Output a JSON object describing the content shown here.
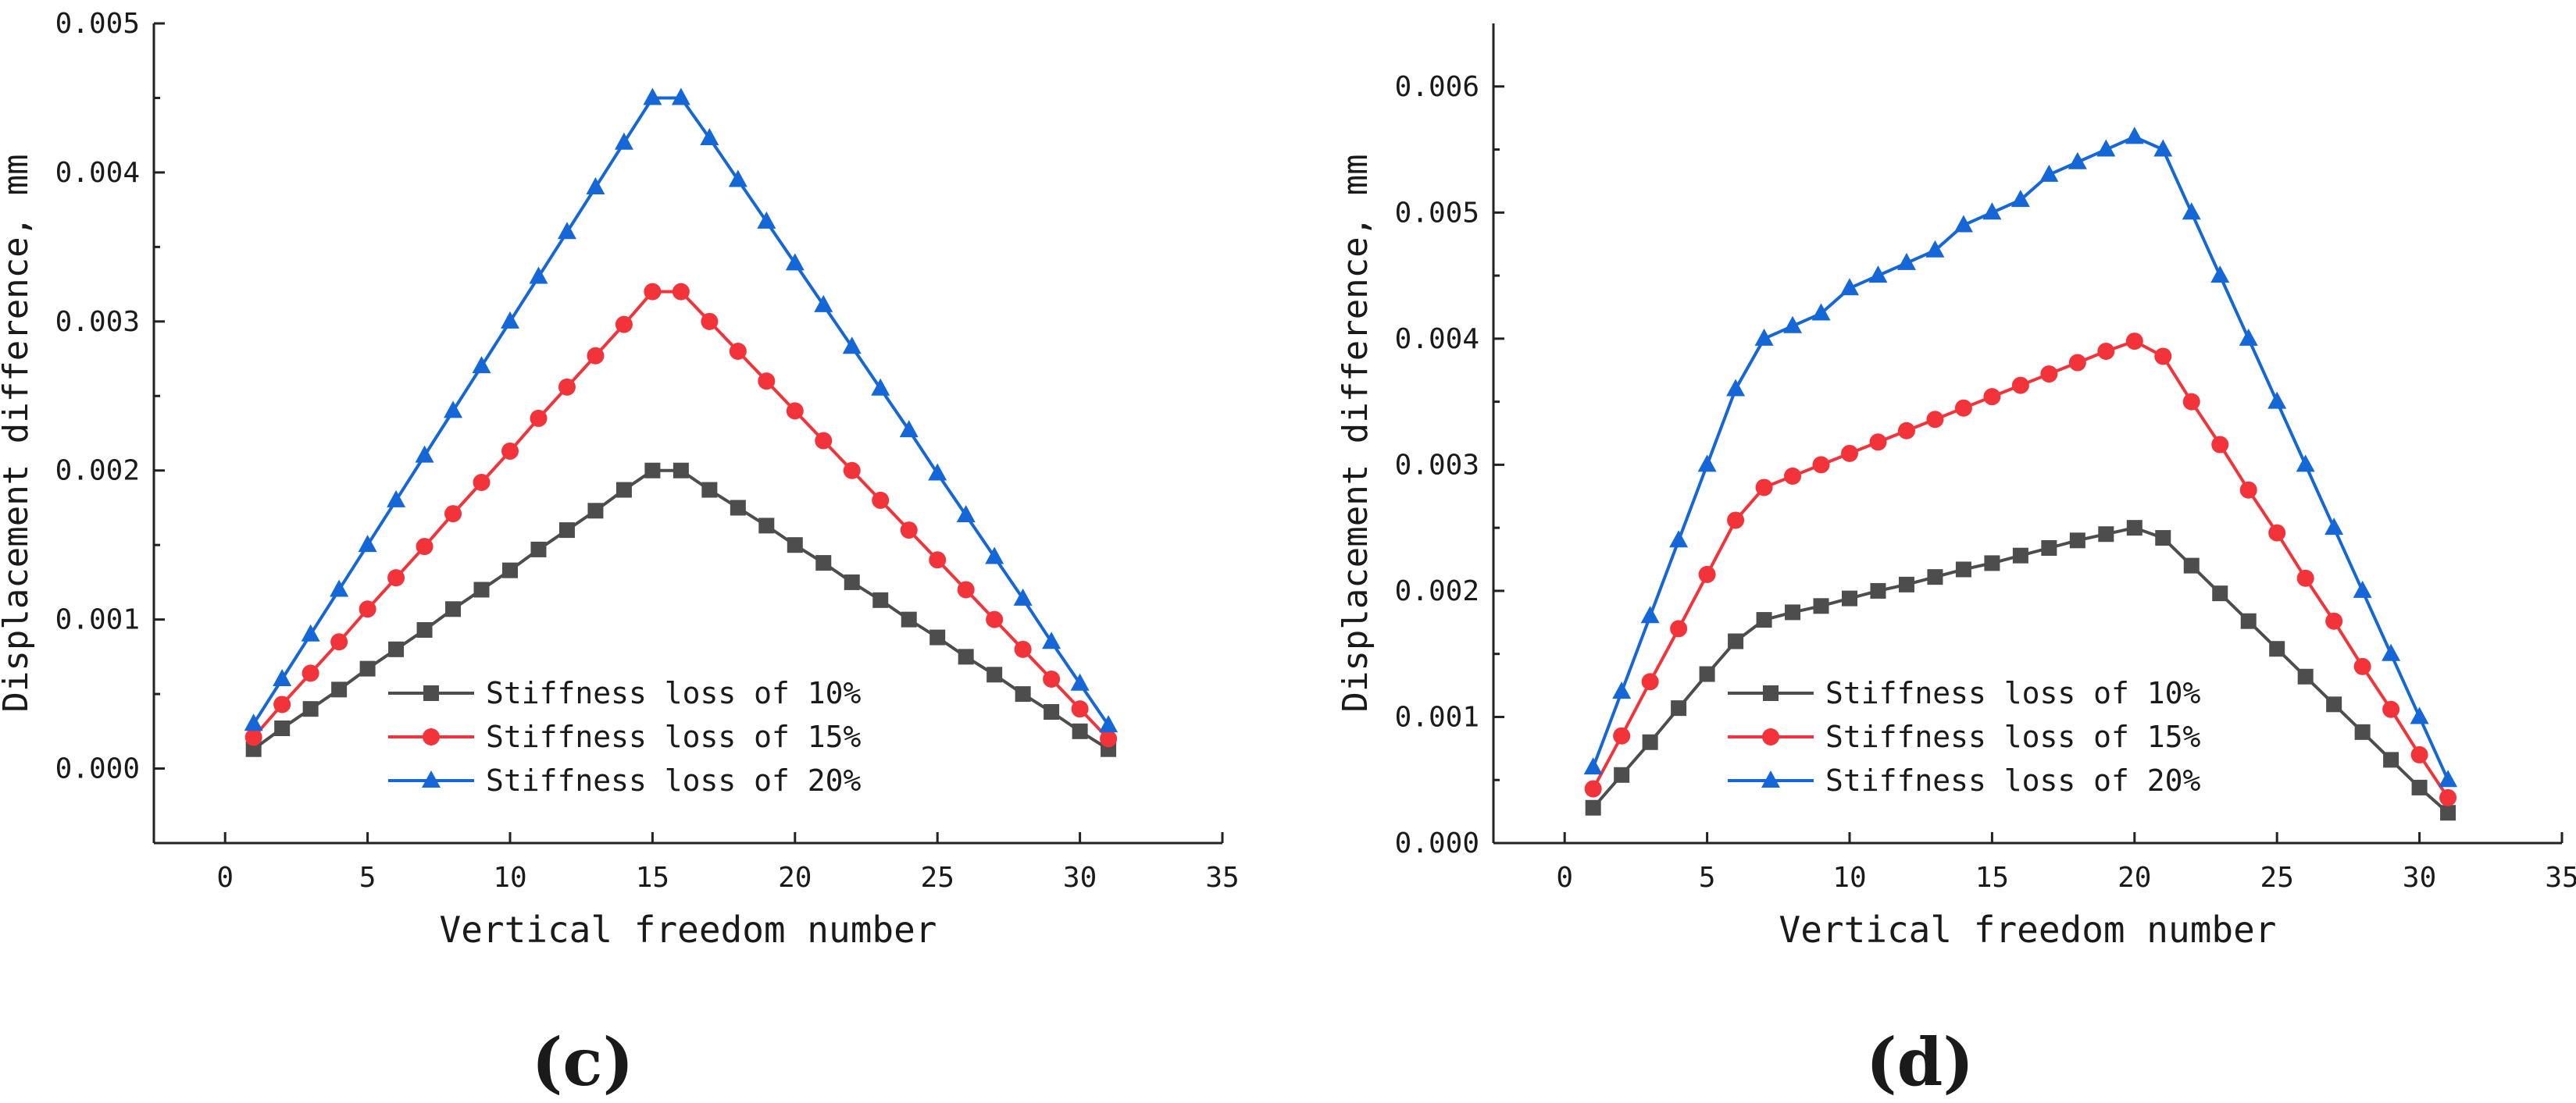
{
  "figure": {
    "panel_labels": [
      "(c)",
      "(d)"
    ]
  },
  "chart_data": [
    {
      "type": "line",
      "panel": "(c)",
      "title": "",
      "xlabel": "Vertical freedom number",
      "ylabel": "Displacement difference, mm",
      "xlim": [
        -2.5,
        35
      ],
      "ylim": [
        -0.0005,
        0.005
      ],
      "xticks": [
        0,
        5,
        10,
        15,
        20,
        25,
        30,
        35
      ],
      "xtick_labels": [
        "0",
        "5",
        "10",
        "15",
        "20",
        "25",
        "30",
        "35"
      ],
      "yticks": [
        0,
        0.001,
        0.002,
        0.003,
        0.004,
        0.005
      ],
      "ytick_labels": [
        "0.000",
        "0.001",
        "0.002",
        "0.003",
        "0.004",
        "0.005"
      ],
      "grid": false,
      "legend_position": "bottom-center",
      "x": [
        1,
        2,
        3,
        4,
        5,
        6,
        7,
        8,
        9,
        10,
        11,
        12,
        13,
        14,
        15,
        16,
        17,
        18,
        19,
        20,
        21,
        22,
        23,
        24,
        25,
        26,
        27,
        28,
        29,
        30,
        31
      ],
      "series": [
        {
          "name": "Stiffness loss of 10%",
          "color": "#4d4d4d",
          "marker": "square",
          "values": [
            0.00013,
            0.00027,
            0.0004,
            0.00053,
            0.00067,
            0.0008,
            0.00093,
            0.00107,
            0.0012,
            0.00133,
            0.00147,
            0.0016,
            0.00173,
            0.00187,
            0.002,
            0.002,
            0.00187,
            0.00175,
            0.00163,
            0.0015,
            0.00138,
            0.00125,
            0.00113,
            0.001,
            0.00088,
            0.00075,
            0.00063,
            0.0005,
            0.00038,
            0.00025,
            0.00013
          ]
        },
        {
          "name": "Stiffness loss of 15%",
          "color": "#f2333a",
          "marker": "circle",
          "values": [
            0.00021,
            0.00043,
            0.00064,
            0.00085,
            0.00107,
            0.00128,
            0.00149,
            0.00171,
            0.00192,
            0.00213,
            0.00235,
            0.00256,
            0.00277,
            0.00298,
            0.0032,
            0.0032,
            0.003,
            0.0028,
            0.0026,
            0.0024,
            0.0022,
            0.002,
            0.0018,
            0.0016,
            0.0014,
            0.0012,
            0.001,
            0.0008,
            0.0006,
            0.0004,
            0.0002
          ]
        },
        {
          "name": "Stiffness loss of 20%",
          "color": "#1566d6",
          "marker": "triangle",
          "values": [
            0.0003,
            0.0006,
            0.0009,
            0.0012,
            0.0015,
            0.0018,
            0.0021,
            0.0024,
            0.0027,
            0.003,
            0.0033,
            0.0036,
            0.0039,
            0.0042,
            0.0045,
            0.0045,
            0.00423,
            0.00395,
            0.00367,
            0.00339,
            0.00311,
            0.00283,
            0.00255,
            0.00227,
            0.00198,
            0.0017,
            0.00142,
            0.00114,
            0.00085,
            0.00057,
            0.00029
          ]
        }
      ]
    },
    {
      "type": "line",
      "panel": "(d)",
      "title": "",
      "xlabel": "Vertical freedom number",
      "ylabel": "Displacement difference, mm",
      "xlim": [
        -2.5,
        35
      ],
      "ylim": [
        0,
        0.0065
      ],
      "xticks": [
        0,
        5,
        10,
        15,
        20,
        25,
        30,
        35
      ],
      "xtick_labels": [
        "0",
        "5",
        "10",
        "15",
        "20",
        "25",
        "30",
        "35"
      ],
      "yticks": [
        0,
        0.001,
        0.002,
        0.003,
        0.004,
        0.005,
        0.006
      ],
      "ytick_labels": [
        "0.000",
        "0.001",
        "0.002",
        "0.003",
        "0.004",
        "0.005",
        "0.006"
      ],
      "grid": false,
      "legend_position": "bottom-center",
      "x": [
        1,
        2,
        3,
        4,
        5,
        6,
        7,
        8,
        9,
        10,
        11,
        12,
        13,
        14,
        15,
        16,
        17,
        18,
        19,
        20,
        21,
        22,
        23,
        24,
        25,
        26,
        27,
        28,
        29,
        30,
        31
      ],
      "series": [
        {
          "name": "Stiffness loss of 10%",
          "color": "#4d4d4d",
          "marker": "square",
          "values": [
            0.00028,
            0.00054,
            0.0008,
            0.00107,
            0.00134,
            0.0016,
            0.00177,
            0.00183,
            0.00188,
            0.00194,
            0.002,
            0.00205,
            0.00211,
            0.00217,
            0.00222,
            0.00228,
            0.00234,
            0.0024,
            0.00245,
            0.0025,
            0.00242,
            0.0022,
            0.00198,
            0.00176,
            0.00154,
            0.00132,
            0.0011,
            0.00088,
            0.00066,
            0.00044,
            0.00024
          ]
        },
        {
          "name": "Stiffness loss of 15%",
          "color": "#f2333a",
          "marker": "circle",
          "values": [
            0.00043,
            0.00085,
            0.00128,
            0.0017,
            0.00213,
            0.00256,
            0.00282,
            0.00291,
            0.003,
            0.00309,
            0.00318,
            0.00327,
            0.00336,
            0.00345,
            0.00354,
            0.00363,
            0.00372,
            0.00381,
            0.0039,
            0.00398,
            0.00386,
            0.0035,
            0.00316,
            0.0028,
            0.00246,
            0.0021,
            0.00176,
            0.0014,
            0.00106,
            0.0007,
            0.00036
          ]
        },
        {
          "name": "Stiffness loss of 20%",
          "color": "#1566d6",
          "marker": "triangle",
          "values": [
            0.0006,
            0.0012,
            0.0018,
            0.0024,
            0.003,
            0.0036,
            0.004,
            0.0041,
            0.0042,
            0.0044,
            0.0045,
            0.0046,
            0.0047,
            0.0049,
            0.005,
            0.0051,
            0.0053,
            0.0054,
            0.0055,
            0.0056,
            0.0055,
            0.005,
            0.0045,
            0.004,
            0.0035,
            0.003,
            0.0025,
            0.002,
            0.0015,
            0.001,
            0.0005
          ]
        }
      ]
    }
  ]
}
